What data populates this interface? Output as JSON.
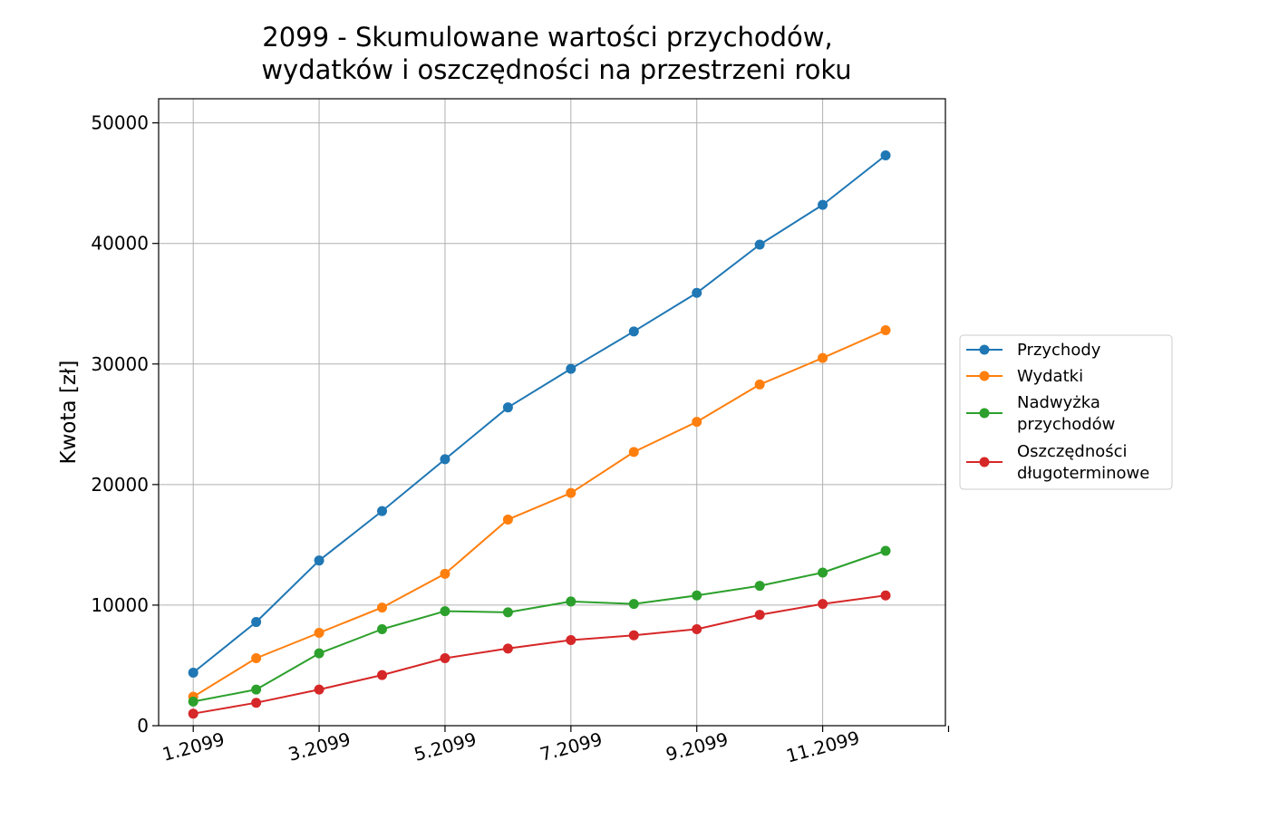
{
  "chart_data": {
    "type": "line",
    "title_line1": "2099 - Skumulowane wartości przychodów,",
    "title_line2": "wydatków i oszczędności na przestrzeni roku",
    "xlabel": "",
    "ylabel": "Kwota [zł]",
    "x": [
      1,
      2,
      3,
      4,
      5,
      6,
      7,
      8,
      9,
      10,
      11,
      12
    ],
    "xlim": [
      0.45,
      12.95
    ],
    "xticks": [
      {
        "value": 1,
        "label": "1.2099"
      },
      {
        "value": 3,
        "label": "3.2099"
      },
      {
        "value": 5,
        "label": "5.2099"
      },
      {
        "value": 7,
        "label": "7.2099"
      },
      {
        "value": 9,
        "label": "9.2099"
      },
      {
        "value": 11,
        "label": "11.2099"
      },
      {
        "value": 13,
        "label": ""
      }
    ],
    "ylim": [
      0,
      52000
    ],
    "yticks": [
      {
        "value": 0,
        "label": "0"
      },
      {
        "value": 10000,
        "label": "10000"
      },
      {
        "value": 20000,
        "label": "20000"
      },
      {
        "value": 30000,
        "label": "30000"
      },
      {
        "value": 40000,
        "label": "40000"
      },
      {
        "value": 50000,
        "label": "50000"
      }
    ],
    "grid": true,
    "legend_position": "right",
    "series": [
      {
        "name": "Przychody",
        "legend_lines": [
          "Przychody"
        ],
        "color": "#1f77b4",
        "values": [
          4400,
          8600,
          13700,
          17800,
          22100,
          26400,
          29600,
          32700,
          35900,
          39900,
          43200,
          47300
        ]
      },
      {
        "name": "Wydatki",
        "legend_lines": [
          "Wydatki"
        ],
        "color": "#ff7f0e",
        "values": [
          2400,
          5600,
          7700,
          9800,
          12600,
          17100,
          19300,
          22700,
          25200,
          28300,
          30500,
          32800
        ]
      },
      {
        "name": "Nadwyżka przychodów",
        "legend_lines": [
          "Nadwyżka",
          "przychodów"
        ],
        "color": "#2ca02c",
        "values": [
          2000,
          3000,
          6000,
          8000,
          9500,
          9400,
          10300,
          10100,
          10800,
          11600,
          12700,
          14500
        ]
      },
      {
        "name": "Oszczędności długoterminowe",
        "legend_lines": [
          "Oszczędności",
          "długoterminowe"
        ],
        "color": "#d62728",
        "values": [
          1000,
          1900,
          3000,
          4200,
          5600,
          6400,
          7100,
          7500,
          8000,
          9200,
          10100,
          10800
        ]
      }
    ]
  }
}
